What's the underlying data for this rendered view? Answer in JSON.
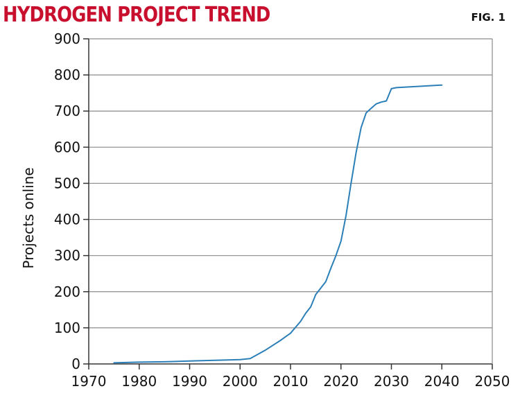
{
  "header": {
    "title": "HYDROGEN PROJECT TREND",
    "fig_label": "FIG. 1"
  },
  "colors": {
    "title": "#c8102e",
    "line": "#2b7fb8",
    "grid": "#8a8a8a",
    "axis": "#333333"
  },
  "chart_data": {
    "type": "line",
    "title": "",
    "xlabel": "",
    "ylabel": "Projects online",
    "xlim": [
      1970,
      2050
    ],
    "ylim": [
      0,
      900
    ],
    "xticks": [
      1970,
      1980,
      1990,
      2000,
      2010,
      2020,
      2030,
      2040,
      2050
    ],
    "yticks": [
      0,
      100,
      200,
      300,
      400,
      500,
      600,
      700,
      800,
      900
    ],
    "grid": "horizontal",
    "series": [
      {
        "x": [
          1975,
          1980,
          1985,
          1990,
          1995,
          2000,
          2002,
          2005,
          2008,
          2010,
          2012,
          2013,
          2014,
          2015,
          2016,
          2017,
          2018,
          2019,
          2020,
          2021,
          2022,
          2023,
          2024,
          2025,
          2026,
          2027,
          2028,
          2029,
          2030,
          2031,
          2035,
          2040
        ],
        "y": [
          3,
          5,
          6,
          8,
          10,
          12,
          15,
          38,
          65,
          85,
          118,
          140,
          158,
          192,
          210,
          228,
          265,
          300,
          340,
          410,
          500,
          585,
          655,
          695,
          708,
          720,
          725,
          728,
          762,
          765,
          768,
          772
        ]
      }
    ]
  }
}
